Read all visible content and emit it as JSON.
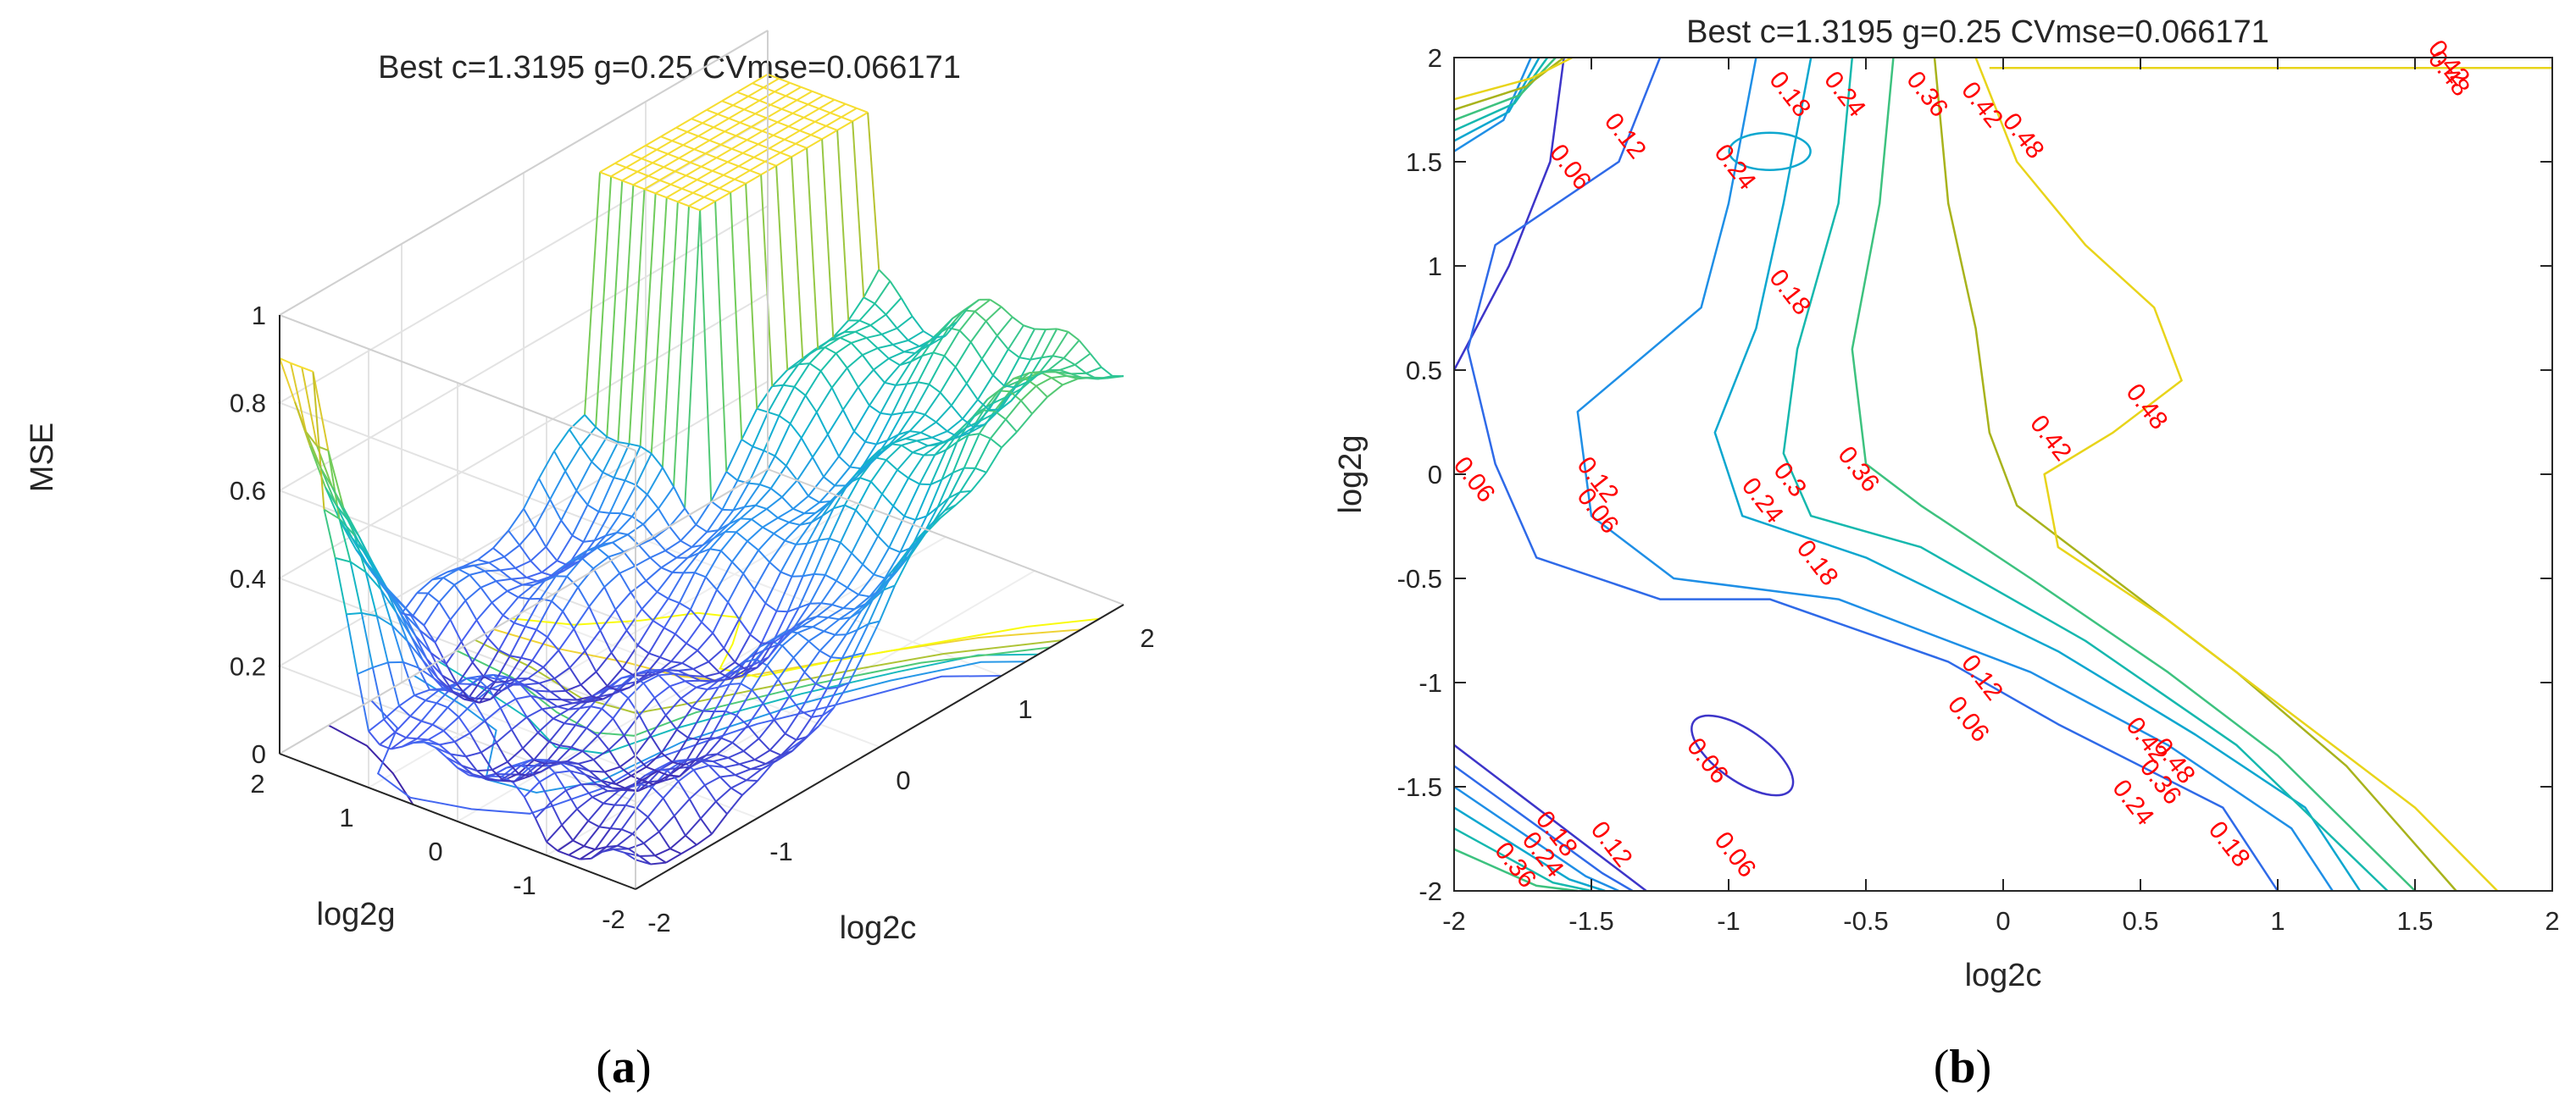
{
  "figure": {
    "panels": [
      {
        "open": "(",
        "letter": "a",
        "close": ")"
      },
      {
        "open": "(",
        "letter": "b",
        "close": ")"
      }
    ]
  },
  "chart_data": [
    {
      "type": "surface",
      "title": "Best c=1.3195 g=0.25 CVmse=0.066171",
      "xlabel": "log2c",
      "ylabel": "log2g",
      "zlabel": "MSE",
      "xlim": [
        -2,
        2
      ],
      "ylim": [
        -2,
        2
      ],
      "zlim": [
        0,
        1
      ],
      "xticks": [
        "-2",
        "-1",
        "0",
        "1",
        "2"
      ],
      "yticks": [
        "-2",
        "-1",
        "0",
        "1",
        "2"
      ],
      "zticks": [
        "0",
        "0.2",
        "0.4",
        "0.6",
        "0.8",
        "1"
      ],
      "colormap": [
        "#3e26a8",
        "#4760f0",
        "#2f8ff0",
        "#12b0d2",
        "#21c4a0",
        "#72cc5a",
        "#c8c128",
        "#f5d63a",
        "#f9fb0e"
      ],
      "grid": true,
      "sampled_mse": {
        "log2c": [
          -2,
          -1,
          0,
          1,
          2
        ],
        "log2g": [
          -2,
          -1,
          0,
          1,
          2
        ],
        "values": [
          [
            0.06,
            0.07,
            0.25,
            0.55,
            0.58
          ],
          [
            0.06,
            0.06,
            0.16,
            0.4,
            0.55
          ],
          [
            0.12,
            0.07,
            0.1,
            0.35,
            0.5
          ],
          [
            0.18,
            0.08,
            0.2,
            0.4,
            0.55
          ],
          [
            0.9,
            0.12,
            0.22,
            0.45,
            0.58
          ]
        ]
      }
    },
    {
      "type": "contour",
      "title": "Best c=1.3195 g=0.25 CVmse=0.066171",
      "xlabel": "log2c",
      "ylabel": "log2g",
      "xlim": [
        -2,
        2
      ],
      "ylim": [
        -2,
        2
      ],
      "xticks": [
        "-2",
        "-1.5",
        "-1",
        "-0.5",
        "0",
        "0.5",
        "1",
        "1.5",
        "2"
      ],
      "yticks": [
        "-2",
        "-1.5",
        "-1",
        "-0.5",
        "0",
        "0.5",
        "1",
        "1.5",
        "2"
      ],
      "levels": [
        0.06,
        0.12,
        0.18,
        0.24,
        0.3,
        0.36,
        0.42,
        0.48
      ],
      "level_colors": [
        "#3d35c9",
        "#2f6ae8",
        "#1f8fe6",
        "#0ea7cf",
        "#16b8ae",
        "#3dc27f",
        "#a8b31c",
        "#e8d41a"
      ],
      "contours": [
        {
          "level": 0.06,
          "points": [
            [
              -1.6,
              2
            ],
            [
              -1.65,
              1.5
            ],
            [
              -1.8,
              1.0
            ],
            [
              -2.0,
              0.5
            ]
          ]
        },
        {
          "level": 0.12,
          "points": [
            [
              -1.25,
              2
            ],
            [
              -1.4,
              1.5
            ],
            [
              -1.85,
              1.1
            ],
            [
              -1.95,
              0.6
            ],
            [
              -1.85,
              0.05
            ],
            [
              -1.7,
              -0.4
            ],
            [
              -1.25,
              -0.6
            ],
            [
              -0.85,
              -0.6
            ],
            [
              -0.2,
              -0.9
            ],
            [
              0.2,
              -1.2
            ],
            [
              0.8,
              -1.6
            ],
            [
              1.0,
              -2.0
            ]
          ]
        },
        {
          "level": 0.18,
          "points": [
            [
              -0.9,
              2
            ],
            [
              -1.0,
              1.3
            ],
            [
              -1.1,
              0.8
            ],
            [
              -1.55,
              0.3
            ],
            [
              -1.5,
              -0.2
            ],
            [
              -1.2,
              -0.5
            ],
            [
              -0.6,
              -0.6
            ],
            [
              0.1,
              -0.95
            ],
            [
              0.6,
              -1.3
            ],
            [
              1.05,
              -1.7
            ],
            [
              1.2,
              -2.0
            ]
          ]
        },
        {
          "level": 0.24,
          "points": [
            [
              -0.7,
              2
            ],
            [
              -0.8,
              1.3
            ],
            [
              -0.9,
              0.7
            ],
            [
              -1.05,
              0.2
            ],
            [
              -0.95,
              -0.2
            ],
            [
              -0.5,
              -0.4
            ],
            [
              0.2,
              -0.85
            ],
            [
              0.7,
              -1.25
            ],
            [
              1.1,
              -1.6
            ],
            [
              1.3,
              -2.0
            ]
          ]
        },
        {
          "level": 0.3,
          "points": [
            [
              -0.55,
              2
            ],
            [
              -0.6,
              1.3
            ],
            [
              -0.75,
              0.6
            ],
            [
              -0.8,
              0.1
            ],
            [
              -0.7,
              -0.2
            ],
            [
              -0.3,
              -0.35
            ],
            [
              0.3,
              -0.8
            ],
            [
              0.85,
              -1.3
            ],
            [
              1.4,
              -2.0
            ]
          ]
        },
        {
          "level": 0.36,
          "points": [
            [
              -0.4,
              2
            ],
            [
              -0.45,
              1.3
            ],
            [
              -0.55,
              0.6
            ],
            [
              -0.5,
              0.05
            ],
            [
              -0.3,
              -0.15
            ],
            [
              0.1,
              -0.5
            ],
            [
              0.6,
              -0.95
            ],
            [
              1.0,
              -1.35
            ],
            [
              1.5,
              -2.0
            ]
          ]
        },
        {
          "level": 0.42,
          "points": [
            [
              -0.25,
              2
            ],
            [
              -0.2,
              1.3
            ],
            [
              -0.1,
              0.7
            ],
            [
              -0.05,
              0.2
            ],
            [
              0.05,
              -0.15
            ],
            [
              0.4,
              -0.5
            ],
            [
              0.85,
              -0.95
            ],
            [
              1.25,
              -1.4
            ],
            [
              1.65,
              -2.0
            ]
          ]
        },
        {
          "level": 0.48,
          "points": [
            [
              -0.1,
              2
            ],
            [
              0.05,
              1.5
            ],
            [
              0.3,
              1.1
            ],
            [
              0.55,
              0.8
            ],
            [
              0.65,
              0.45
            ],
            [
              0.4,
              0.2
            ],
            [
              0.15,
              0.0
            ],
            [
              0.2,
              -0.35
            ],
            [
              0.6,
              -0.7
            ],
            [
              1.1,
              -1.2
            ],
            [
              1.5,
              -1.6
            ],
            [
              1.8,
              -2.0
            ]
          ]
        }
      ],
      "best": {
        "log2c": 0.4,
        "log2g": -2
      },
      "labels": [
        {
          "text": "0.06",
          "x": -1.6,
          "y": 1.45
        },
        {
          "text": "0.12",
          "x": -1.4,
          "y": 1.6
        },
        {
          "text": "0.18",
          "x": -0.8,
          "y": 1.8
        },
        {
          "text": "0.24",
          "x": -1.0,
          "y": 1.45
        },
        {
          "text": "0.24",
          "x": -0.6,
          "y": 1.8
        },
        {
          "text": "0.36",
          "x": -0.3,
          "y": 1.8
        },
        {
          "text": "0.42",
          "x": -0.1,
          "y": 1.75
        },
        {
          "text": "0.48",
          "x": 0.05,
          "y": 1.6
        },
        {
          "text": "0.42",
          "x": 1.6,
          "y": 1.95
        },
        {
          "text": "0.48",
          "x": 1.6,
          "y": 1.9
        },
        {
          "text": "0.18",
          "x": -0.8,
          "y": 0.85
        },
        {
          "text": "0.06",
          "x": -1.95,
          "y": -0.05
        },
        {
          "text": "0.12",
          "x": -1.5,
          "y": -0.05
        },
        {
          "text": "0.06",
          "x": -1.5,
          "y": -0.2
        },
        {
          "text": "0.24",
          "x": -0.9,
          "y": -0.15
        },
        {
          "text": "0.3",
          "x": -0.8,
          "y": -0.05
        },
        {
          "text": "0.36",
          "x": -0.55,
          "y": 0.0
        },
        {
          "text": "0.42",
          "x": 0.15,
          "y": 0.15
        },
        {
          "text": "0.48",
          "x": 0.5,
          "y": 0.3
        },
        {
          "text": "0.18",
          "x": -0.7,
          "y": -0.45
        },
        {
          "text": "0.12",
          "x": -0.1,
          "y": -1.0
        },
        {
          "text": "0.06",
          "x": -0.15,
          "y": -1.2
        },
        {
          "text": "0.06",
          "x": -1.1,
          "y": -1.4
        },
        {
          "text": "0.42",
          "x": 0.5,
          "y": -1.3
        },
        {
          "text": "0.48",
          "x": 0.6,
          "y": -1.4
        },
        {
          "text": "0.36",
          "x": 0.55,
          "y": -1.5
        },
        {
          "text": "0.24",
          "x": 0.45,
          "y": -1.6
        },
        {
          "text": "0.18",
          "x": 0.8,
          "y": -1.8
        },
        {
          "text": "0.36",
          "x": -1.8,
          "y": -1.9
        },
        {
          "text": "0.24",
          "x": -1.7,
          "y": -1.85
        },
        {
          "text": "0.18",
          "x": -1.65,
          "y": -1.75
        },
        {
          "text": "0.12",
          "x": -1.45,
          "y": -1.8
        },
        {
          "text": "0.06",
          "x": -1.0,
          "y": -1.85
        }
      ]
    }
  ]
}
